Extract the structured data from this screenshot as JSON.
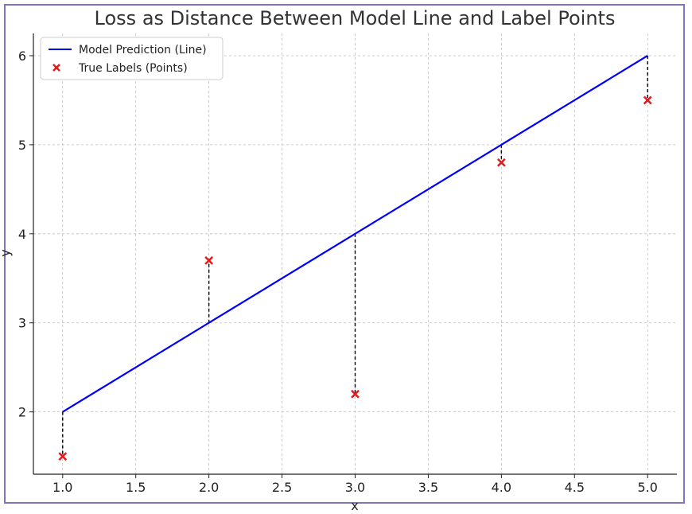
{
  "chart_data": {
    "type": "line",
    "title": "Loss as Distance Between Model Line and Label Points",
    "xlabel": "x",
    "ylabel": "y",
    "xlim": [
      0.8,
      5.2
    ],
    "ylim": [
      1.3,
      6.25
    ],
    "xticks": [
      1.0,
      1.5,
      2.0,
      2.5,
      3.0,
      3.5,
      4.0,
      4.5,
      5.0
    ],
    "xtick_labels": [
      "1.0",
      "1.5",
      "2.0",
      "2.5",
      "3.0",
      "3.5",
      "4.0",
      "4.5",
      "5.0"
    ],
    "yticks": [
      2,
      3,
      4,
      5,
      6
    ],
    "ytick_labels": [
      "2",
      "3",
      "4",
      "5",
      "6"
    ],
    "grid": true,
    "legend_position": "top-left",
    "series": [
      {
        "name": "Model Prediction (Line)",
        "kind": "line",
        "color": "#0000ff",
        "x": [
          1,
          2,
          3,
          4,
          5
        ],
        "y": [
          2,
          3,
          4,
          5,
          6
        ]
      },
      {
        "name": "True Labels (Points)",
        "kind": "scatter",
        "marker": "x",
        "color": "#e31a1c",
        "x": [
          1,
          2,
          3,
          4,
          5
        ],
        "y": [
          1.5,
          3.7,
          2.2,
          4.8,
          5.5
        ]
      }
    ],
    "residual_lines": {
      "color": "#000000",
      "style": "dashed"
    }
  }
}
